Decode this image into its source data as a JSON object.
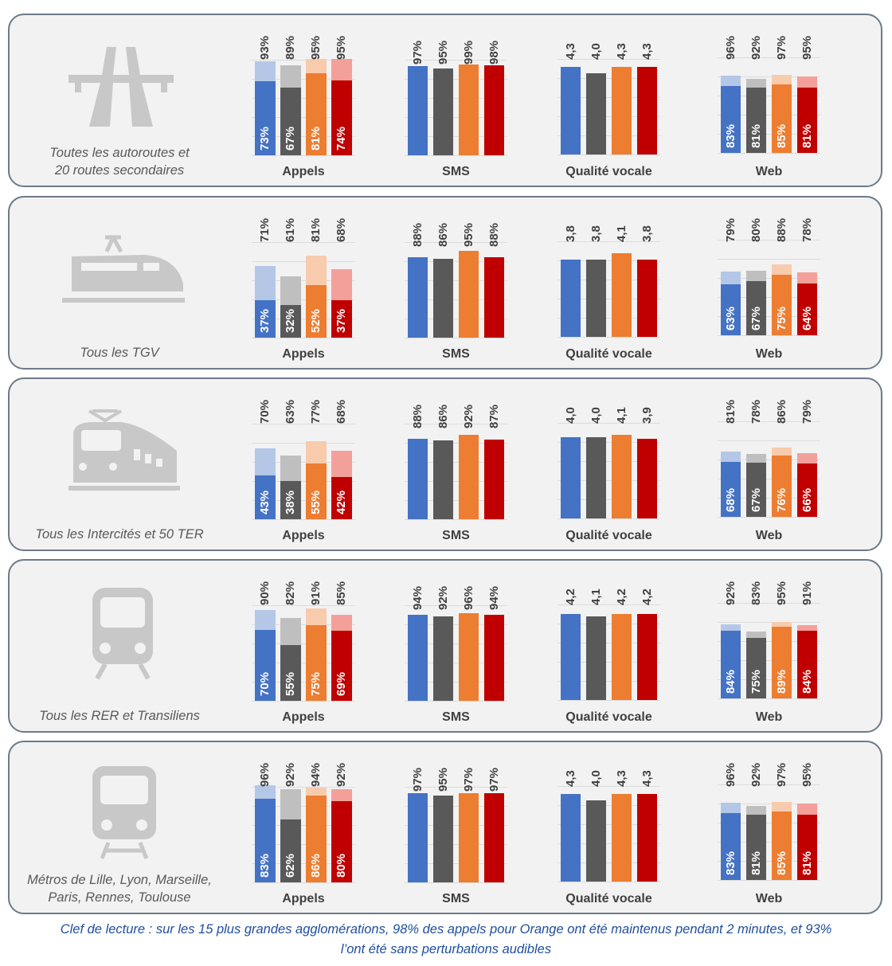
{
  "colors": {
    "series_dark": [
      "#4472c4",
      "#595959",
      "#ed7d31",
      "#c00000"
    ],
    "series_light": [
      "#b4c7e7",
      "#bfbfbf",
      "#f8cbad",
      "#f4a09a"
    ],
    "caption_text": "#595959",
    "footnote_text": "#1f4e9c"
  },
  "chart_labels": {
    "appels": "Appels",
    "sms": "SMS",
    "voice": "Qualité vocale",
    "web": "Web"
  },
  "footnote": {
    "line1": "Clef de lecture : sur les 15 plus grandes agglomérations, 98% des appels pour Orange ont été maintenus pendant 2 minutes, et 93%",
    "line2": "l’ont été sans perturbations audibles"
  },
  "chart_data": [
    {
      "type": "bar",
      "row_caption": [
        "Toutes les autoroutes et",
        "20 routes secondaires"
      ],
      "icon": "highway-icon",
      "appels": {
        "total": [
          "93%",
          "89%",
          "95%",
          "95%"
        ],
        "clean": [
          "73%",
          "67%",
          "81%",
          "74%"
        ]
      },
      "sms": [
        "97%",
        "95%",
        "99%",
        "98%"
      ],
      "voice": [
        "4,3",
        "4,0",
        "4,3",
        "4,3"
      ],
      "web": {
        "total": [
          "96%",
          "92%",
          "97%",
          "95%"
        ],
        "clean": [
          "83%",
          "81%",
          "85%",
          "81%"
        ]
      }
    },
    {
      "type": "bar",
      "row_caption": [
        "Tous les TGV"
      ],
      "icon": "tgv-train-icon",
      "appels": {
        "total": [
          "71%",
          "61%",
          "81%",
          "68%"
        ],
        "clean": [
          "37%",
          "32%",
          "52%",
          "37%"
        ]
      },
      "sms": [
        "88%",
        "86%",
        "95%",
        "88%"
      ],
      "voice": [
        "3,8",
        "3,8",
        "4,1",
        "3,8"
      ],
      "web": {
        "total": [
          "79%",
          "80%",
          "88%",
          "78%"
        ],
        "clean": [
          "63%",
          "67%",
          "75%",
          "64%"
        ]
      }
    },
    {
      "type": "bar",
      "row_caption": [
        "Tous les Intercités et 50 TER"
      ],
      "icon": "intercity-train-icon",
      "appels": {
        "total": [
          "70%",
          "63%",
          "77%",
          "68%"
        ],
        "clean": [
          "43%",
          "38%",
          "55%",
          "42%"
        ]
      },
      "sms": [
        "88%",
        "86%",
        "92%",
        "87%"
      ],
      "voice": [
        "4,0",
        "4,0",
        "4,1",
        "3,9"
      ],
      "web": {
        "total": [
          "81%",
          "78%",
          "86%",
          "79%"
        ],
        "clean": [
          "68%",
          "67%",
          "76%",
          "66%"
        ]
      }
    },
    {
      "type": "bar",
      "row_caption": [
        "Tous les RER et Transiliens"
      ],
      "icon": "rer-train-icon",
      "appels": {
        "total": [
          "90%",
          "82%",
          "91%",
          "85%"
        ],
        "clean": [
          "70%",
          "55%",
          "75%",
          "69%"
        ]
      },
      "sms": [
        "94%",
        "92%",
        "96%",
        "94%"
      ],
      "voice": [
        "4,2",
        "4,1",
        "4,2",
        "4,2"
      ],
      "web": {
        "total": [
          "92%",
          "83%",
          "95%",
          "91%"
        ],
        "clean": [
          "84%",
          "75%",
          "89%",
          "84%"
        ]
      }
    },
    {
      "type": "bar",
      "row_caption": [
        "Métros de Lille, Lyon, Marseille,",
        "Paris, Rennes, Toulouse"
      ],
      "icon": "metro-icon",
      "appels": {
        "total": [
          "96%",
          "92%",
          "94%",
          "92%"
        ],
        "clean": [
          "83%",
          "62%",
          "86%",
          "80%"
        ]
      },
      "sms": [
        "97%",
        "95%",
        "97%",
        "97%"
      ],
      "voice": [
        "4,3",
        "4,0",
        "4,3",
        "4,3"
      ],
      "web": {
        "total": [
          "96%",
          "92%",
          "97%",
          "95%"
        ],
        "clean": [
          "83%",
          "81%",
          "85%",
          "81%"
        ]
      }
    }
  ]
}
